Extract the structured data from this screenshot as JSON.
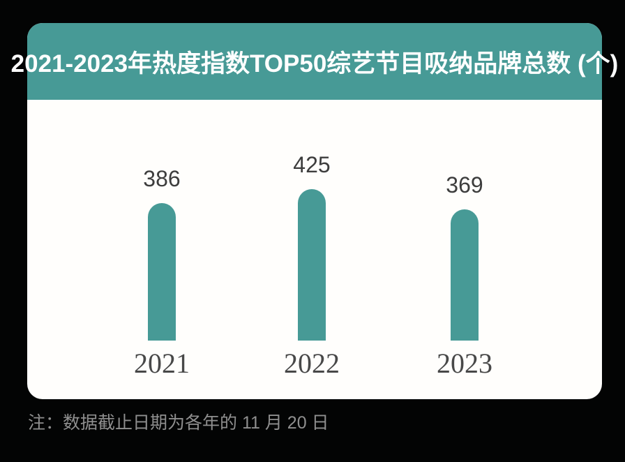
{
  "page": {
    "background_color": "#030404"
  },
  "card": {
    "background_color": "#ffffff",
    "header": {
      "title": "2021-2023年热度指数TOP50综艺节目吸纳品牌总数 (个)",
      "bg_color": "#479a96",
      "text_color": "#ffffff"
    }
  },
  "chart_data": {
    "type": "bar",
    "title": "2021-2023年热度指数TOP50综艺节目吸纳品牌总数 (个)",
    "categories": [
      "2021",
      "2022",
      "2023"
    ],
    "values": [
      386,
      425,
      369
    ],
    "value_labels": [
      "386",
      "425",
      "369"
    ],
    "xlabel": "",
    "ylabel": "",
    "ylim": [
      0,
      450
    ],
    "grid": false,
    "legend": false,
    "orientation": "vertical",
    "bar_style": "rounded-top-pill",
    "bar_color": "#479a96",
    "value_label_color": "#3d3d3d",
    "category_label_color": "#484848"
  },
  "footnote": {
    "text": "注：数据截止日期为各年的 11 月 20 日",
    "color": "#8f8f8f"
  }
}
